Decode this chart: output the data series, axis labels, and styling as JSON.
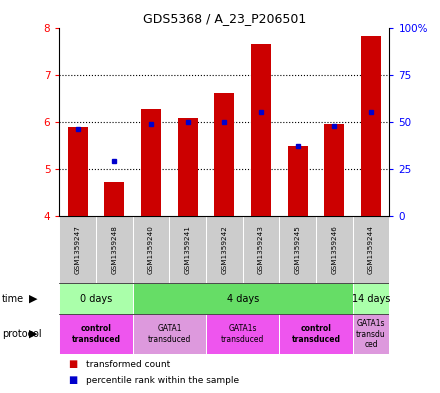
{
  "title": "GDS5368 / A_23_P206501",
  "samples": [
    "GSM1359247",
    "GSM1359248",
    "GSM1359240",
    "GSM1359241",
    "GSM1359242",
    "GSM1359243",
    "GSM1359245",
    "GSM1359246",
    "GSM1359244"
  ],
  "transformed_counts": [
    5.9,
    4.72,
    6.28,
    6.08,
    6.62,
    7.65,
    5.48,
    5.95,
    7.82
  ],
  "percentile_ranks": [
    46,
    29,
    49,
    50,
    50,
    55,
    37,
    48,
    55
  ],
  "ylim": [
    4,
    8
  ],
  "y_left_ticks": [
    4,
    5,
    6,
    7,
    8
  ],
  "y_right_ticks": [
    0,
    25,
    50,
    75,
    100
  ],
  "y_right_labels": [
    "0",
    "25",
    "50",
    "75",
    "100%"
  ],
  "bar_color": "#cc0000",
  "dot_color": "#0000cc",
  "bar_width": 0.55,
  "time_groups": [
    {
      "label": "0 days",
      "start": 0,
      "end": 2,
      "color": "#aaffaa"
    },
    {
      "label": "4 days",
      "start": 2,
      "end": 8,
      "color": "#66dd66"
    },
    {
      "label": "14 days",
      "start": 8,
      "end": 9,
      "color": "#aaffaa"
    }
  ],
  "protocol_groups": [
    {
      "label": "control\ntransduced",
      "start": 0,
      "end": 2,
      "color": "#ee55ee",
      "bold": true
    },
    {
      "label": "GATA1\ntransduced",
      "start": 2,
      "end": 4,
      "color": "#dd99dd",
      "bold": false
    },
    {
      "label": "GATA1s\ntransduced",
      "start": 4,
      "end": 6,
      "color": "#ee55ee",
      "bold": false
    },
    {
      "label": "control\ntransduced",
      "start": 6,
      "end": 8,
      "color": "#ee55ee",
      "bold": true
    },
    {
      "label": "GATA1s\ntransdu\nced",
      "start": 8,
      "end": 9,
      "color": "#dd99dd",
      "bold": false
    }
  ],
  "legend_items": [
    {
      "color": "#cc0000",
      "label": "transformed count"
    },
    {
      "color": "#0000cc",
      "label": "percentile rank within the sample"
    }
  ],
  "sample_bg": "#cccccc"
}
